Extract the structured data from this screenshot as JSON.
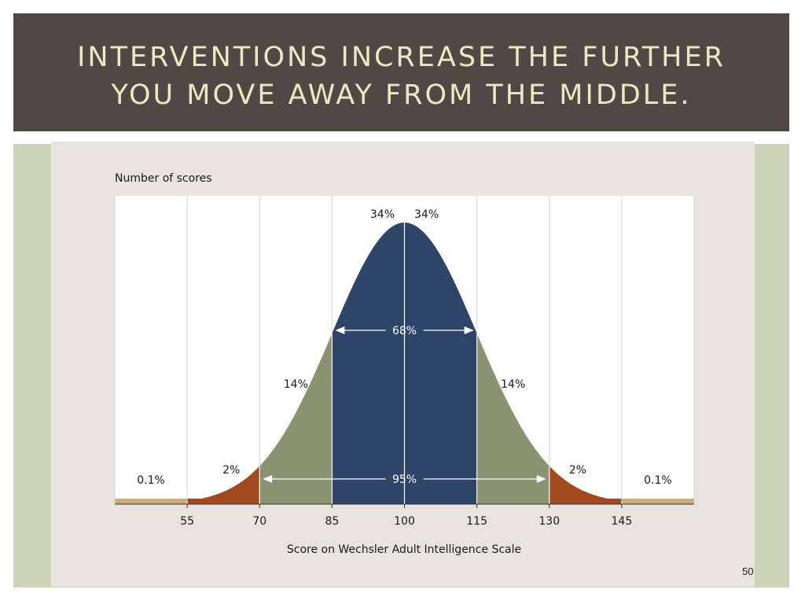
{
  "slide": {
    "title_line1": "INTERVENTIONS INCREASE THE FURTHER",
    "title_line2": "YOU MOVE AWAY FROM THE MIDDLE.",
    "page_number": "50"
  },
  "colors": {
    "title_bg": "#514845",
    "title_text": "#ebe8c1",
    "center": "#2e4569",
    "one_to_two_sd": "#8a9370",
    "two_to_three_sd": "#a2491e",
    "beyond_three_sd": "#c9ad7a"
  },
  "chart_data": {
    "type": "area",
    "ylabel": "Number of scores",
    "xlabel": "Score on Wechsler Adult Intelligence Scale",
    "x_ticks": [
      55,
      70,
      85,
      100,
      115,
      130,
      145
    ],
    "xlim": [
      40,
      160
    ],
    "mean": 100,
    "sd": 15,
    "grid": true,
    "bands": [
      {
        "from": 40,
        "to": 55,
        "label": "0.1%"
      },
      {
        "from": 55,
        "to": 70,
        "label": "2%"
      },
      {
        "from": 70,
        "to": 85,
        "label": "14%"
      },
      {
        "from": 85,
        "to": 100,
        "label": "34%"
      },
      {
        "from": 100,
        "to": 115,
        "label": "34%"
      },
      {
        "from": 115,
        "to": 130,
        "label": "14%"
      },
      {
        "from": 130,
        "to": 145,
        "label": "2%"
      },
      {
        "from": 145,
        "to": 160,
        "label": "0.1%"
      }
    ],
    "ranges": [
      {
        "from": 85,
        "to": 115,
        "label": "68%"
      },
      {
        "from": 70,
        "to": 130,
        "label": "95%"
      }
    ]
  }
}
